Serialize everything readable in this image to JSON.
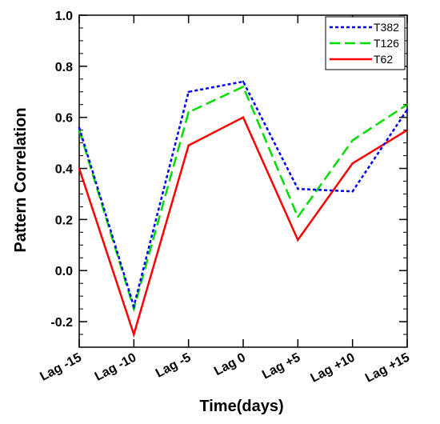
{
  "chart_data": {
    "type": "line",
    "title": "",
    "xlabel": "Time(days)",
    "ylabel": "Pattern Correlation",
    "categories": [
      "Lag -15",
      "Lag -10",
      "Lag -5",
      "Lag 0",
      "Lag +5",
      "Lag +10",
      "Lag +15"
    ],
    "ylim": [
      -0.3,
      1.0
    ],
    "yticks": [
      -0.2,
      0.0,
      0.2,
      0.4,
      0.6,
      0.8,
      1.0
    ],
    "ytick_labels": [
      "-0.2",
      "0.0",
      "0.2",
      "0.4",
      "0.6",
      "0.8",
      "1.0"
    ],
    "grid": false,
    "legend_position": "top-right",
    "series": [
      {
        "name": "T382",
        "color": "#0000ff",
        "dash": "dotted",
        "values": [
          0.56,
          -0.14,
          0.7,
          0.74,
          0.32,
          0.31,
          0.63
        ]
      },
      {
        "name": "T126",
        "color": "#00dd00",
        "dash": "dashed",
        "values": [
          0.55,
          -0.15,
          0.62,
          0.72,
          0.21,
          0.51,
          0.65
        ]
      },
      {
        "name": "T62",
        "color": "#ff0000",
        "dash": "solid",
        "values": [
          0.4,
          -0.25,
          0.49,
          0.6,
          0.12,
          0.42,
          0.55
        ]
      }
    ]
  }
}
